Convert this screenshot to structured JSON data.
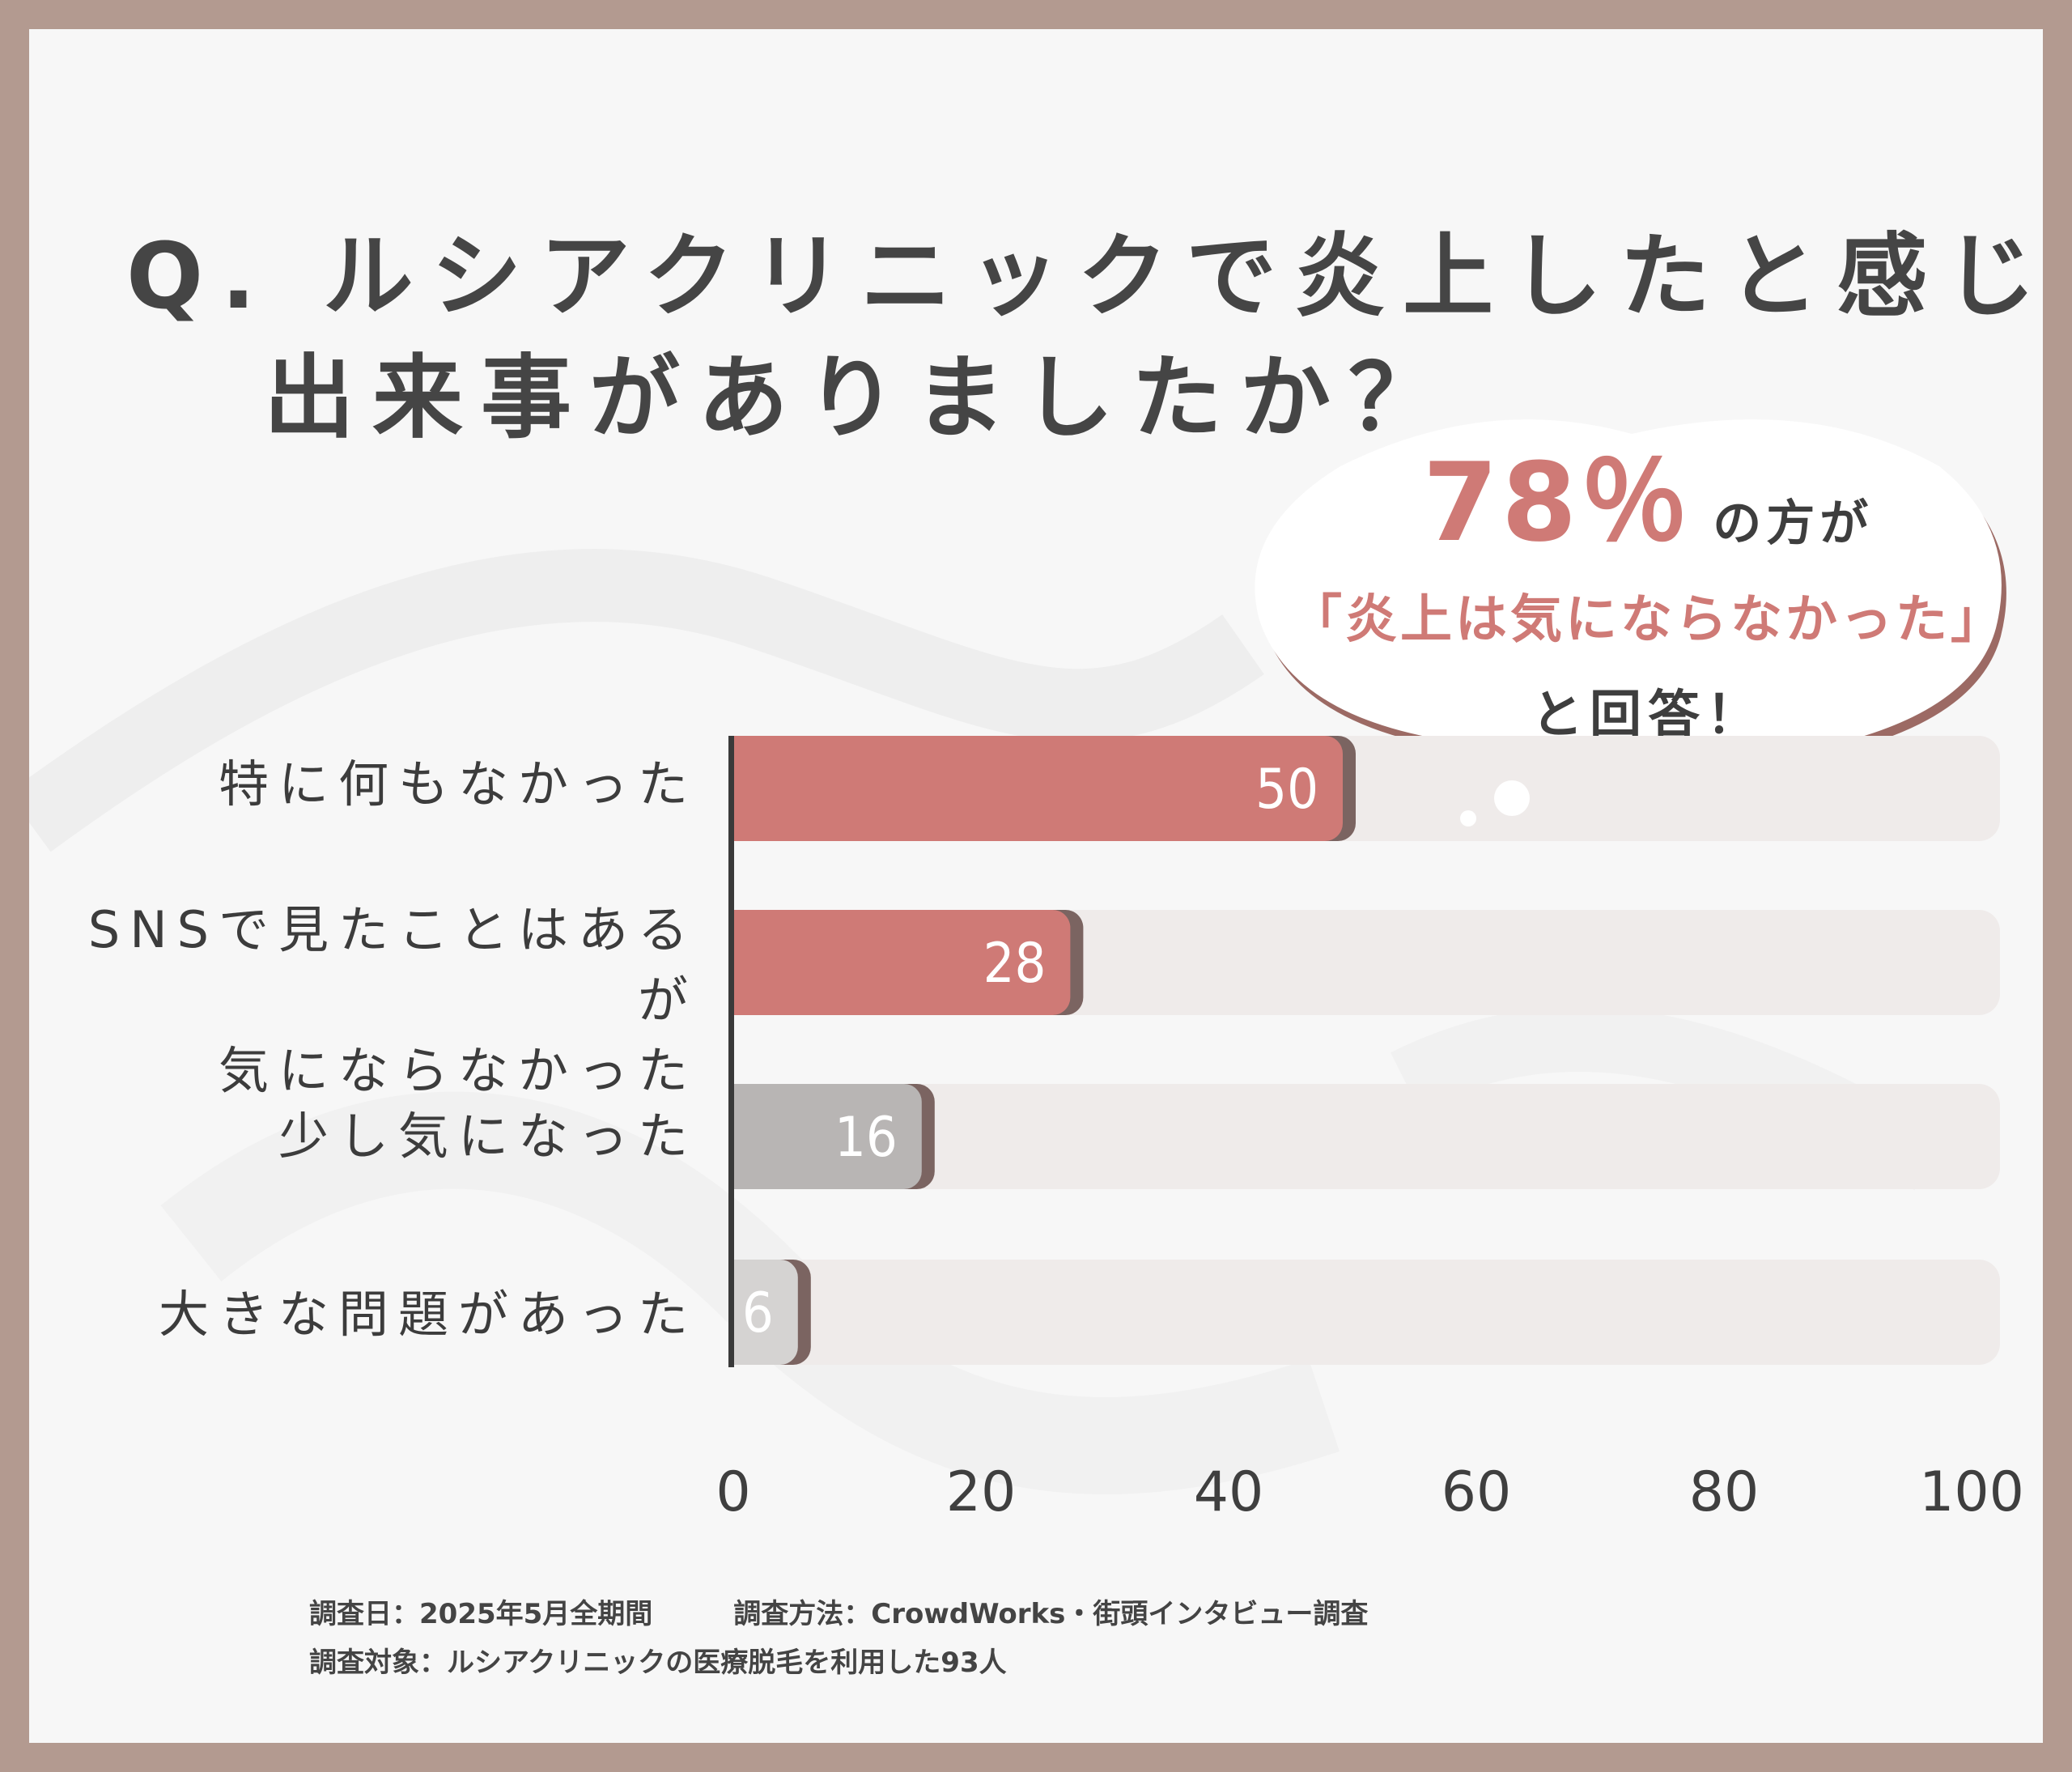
{
  "title": {
    "line1": "Q. ルシアクリニックで炎上したと感じる",
    "line2": "出来事がありましたか？"
  },
  "callout": {
    "percent": "78％",
    "after_percent": "の方が",
    "quote": "「炎上は気にならなかった」",
    "answer": "と回答！"
  },
  "chart_data": {
    "type": "bar",
    "orientation": "horizontal",
    "categories": [
      "特に何もなかった",
      "SNSで見たことはあるが\n気にならなかった",
      "少し気になった",
      "大きな問題があった"
    ],
    "values": [
      50,
      28,
      16,
      6
    ],
    "xlim": [
      0,
      100
    ],
    "xticks": [
      "0",
      "20",
      "40",
      "60",
      "80",
      "100"
    ],
    "colors": [
      "#cf7a76",
      "#cf7a76",
      "#b8b5b4",
      "#d5d3d2"
    ],
    "track_color": "#efebea"
  },
  "footer": {
    "date": "調査日：2025年5月全期間",
    "method": "調査方法：CrowdWorks・街頭インタビュー調査",
    "target": "調査対象：ルシアクリニックの医療脱毛を利用した93人"
  }
}
